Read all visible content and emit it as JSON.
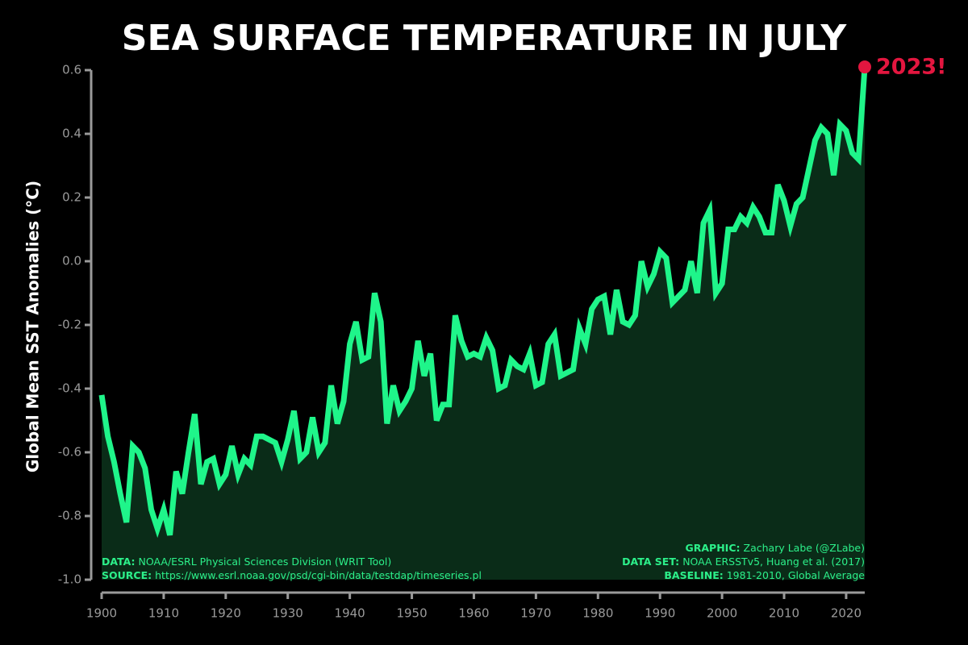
{
  "chart_data": {
    "type": "line",
    "title": "SEA SURFACE TEMPERATURE IN JULY",
    "y_label": "Global Mean SST Anomalies (°C)",
    "annotation": "2023!",
    "credits_left": [
      {
        "label": "DATA:",
        "text": "NOAA/ESRL Physical Sciences Division (WRIT Tool)"
      },
      {
        "label": "SOURCE:",
        "text": "https://www.esrl.noaa.gov/psd/cgi-bin/data/testdap/timeseries.pl"
      }
    ],
    "credits_right": [
      {
        "label": "GRAPHIC:",
        "text": "Zachary Labe (@ZLabe)"
      },
      {
        "label": "DATA SET:",
        "text": "NOAA ERSSTv5, Huang et al. (2017)"
      },
      {
        "label": "BASELINE:",
        "text": "1981-2010, Global Average"
      }
    ],
    "x": [
      1900,
      1901,
      1902,
      1903,
      1904,
      1905,
      1906,
      1907,
      1908,
      1909,
      1910,
      1911,
      1912,
      1913,
      1914,
      1915,
      1916,
      1917,
      1918,
      1919,
      1920,
      1921,
      1922,
      1923,
      1924,
      1925,
      1926,
      1927,
      1928,
      1929,
      1930,
      1931,
      1932,
      1933,
      1934,
      1935,
      1936,
      1937,
      1938,
      1939,
      1940,
      1941,
      1942,
      1943,
      1944,
      1945,
      1946,
      1947,
      1948,
      1949,
      1950,
      1951,
      1952,
      1953,
      1954,
      1955,
      1956,
      1957,
      1958,
      1959,
      1960,
      1961,
      1962,
      1963,
      1964,
      1965,
      1966,
      1967,
      1968,
      1969,
      1970,
      1971,
      1972,
      1973,
      1974,
      1975,
      1976,
      1977,
      1978,
      1979,
      1980,
      1981,
      1982,
      1983,
      1984,
      1985,
      1986,
      1987,
      1988,
      1989,
      1990,
      1991,
      1992,
      1993,
      1994,
      1995,
      1996,
      1997,
      1998,
      1999,
      2000,
      2001,
      2002,
      2003,
      2004,
      2005,
      2006,
      2007,
      2008,
      2009,
      2010,
      2011,
      2012,
      2013,
      2014,
      2015,
      2016,
      2017,
      2018,
      2019,
      2020,
      2021,
      2022,
      2023
    ],
    "series": [
      {
        "color": "#1ff58a",
        "fill": "#0a2c18",
        "highlight_color": "#e3163f",
        "values": [
          -0.42,
          -0.55,
          -0.63,
          -0.73,
          -0.82,
          -0.58,
          -0.6,
          -0.65,
          -0.78,
          -0.84,
          -0.78,
          -0.86,
          -0.66,
          -0.73,
          -0.6,
          -0.48,
          -0.7,
          -0.63,
          -0.62,
          -0.7,
          -0.67,
          -0.58,
          -0.67,
          -0.62,
          -0.64,
          -0.55,
          -0.55,
          -0.56,
          -0.57,
          -0.63,
          -0.56,
          -0.47,
          -0.62,
          -0.6,
          -0.49,
          -0.6,
          -0.57,
          -0.39,
          -0.51,
          -0.44,
          -0.26,
          -0.19,
          -0.31,
          -0.3,
          -0.1,
          -0.19,
          -0.51,
          -0.39,
          -0.47,
          -0.44,
          -0.4,
          -0.25,
          -0.36,
          -0.29,
          -0.5,
          -0.45,
          -0.45,
          -0.17,
          -0.25,
          -0.3,
          -0.29,
          -0.3,
          -0.24,
          -0.28,
          -0.4,
          -0.39,
          -0.31,
          -0.33,
          -0.34,
          -0.29,
          -0.39,
          -0.38,
          -0.26,
          -0.23,
          -0.36,
          -0.35,
          -0.34,
          -0.21,
          -0.26,
          -0.15,
          -0.12,
          -0.11,
          -0.23,
          -0.09,
          -0.19,
          -0.2,
          -0.17,
          0.0,
          -0.08,
          -0.04,
          0.03,
          0.01,
          -0.13,
          -0.11,
          -0.09,
          0.0,
          -0.1,
          0.12,
          0.16,
          -0.1,
          -0.07,
          0.1,
          0.1,
          0.14,
          0.12,
          0.17,
          0.14,
          0.09,
          0.09,
          0.24,
          0.19,
          0.11,
          0.18,
          0.2,
          0.29,
          0.38,
          0.42,
          0.4,
          0.27,
          0.43,
          0.41,
          0.34,
          0.32,
          0.61
        ]
      }
    ],
    "xlim": [
      1900,
      2023
    ],
    "xticks": [
      1900,
      1910,
      1920,
      1930,
      1940,
      1950,
      1960,
      1970,
      1980,
      1990,
      2000,
      2010,
      2020
    ],
    "ylim": [
      -1.0,
      0.6
    ],
    "yticks": [
      {
        "value": -1.0,
        "label": "-1.0"
      },
      -0.8,
      -0.6,
      -0.4,
      -0.2,
      {
        "value": 0,
        "label": "0.0"
      },
      0.2,
      0.4,
      0.6
    ]
  }
}
